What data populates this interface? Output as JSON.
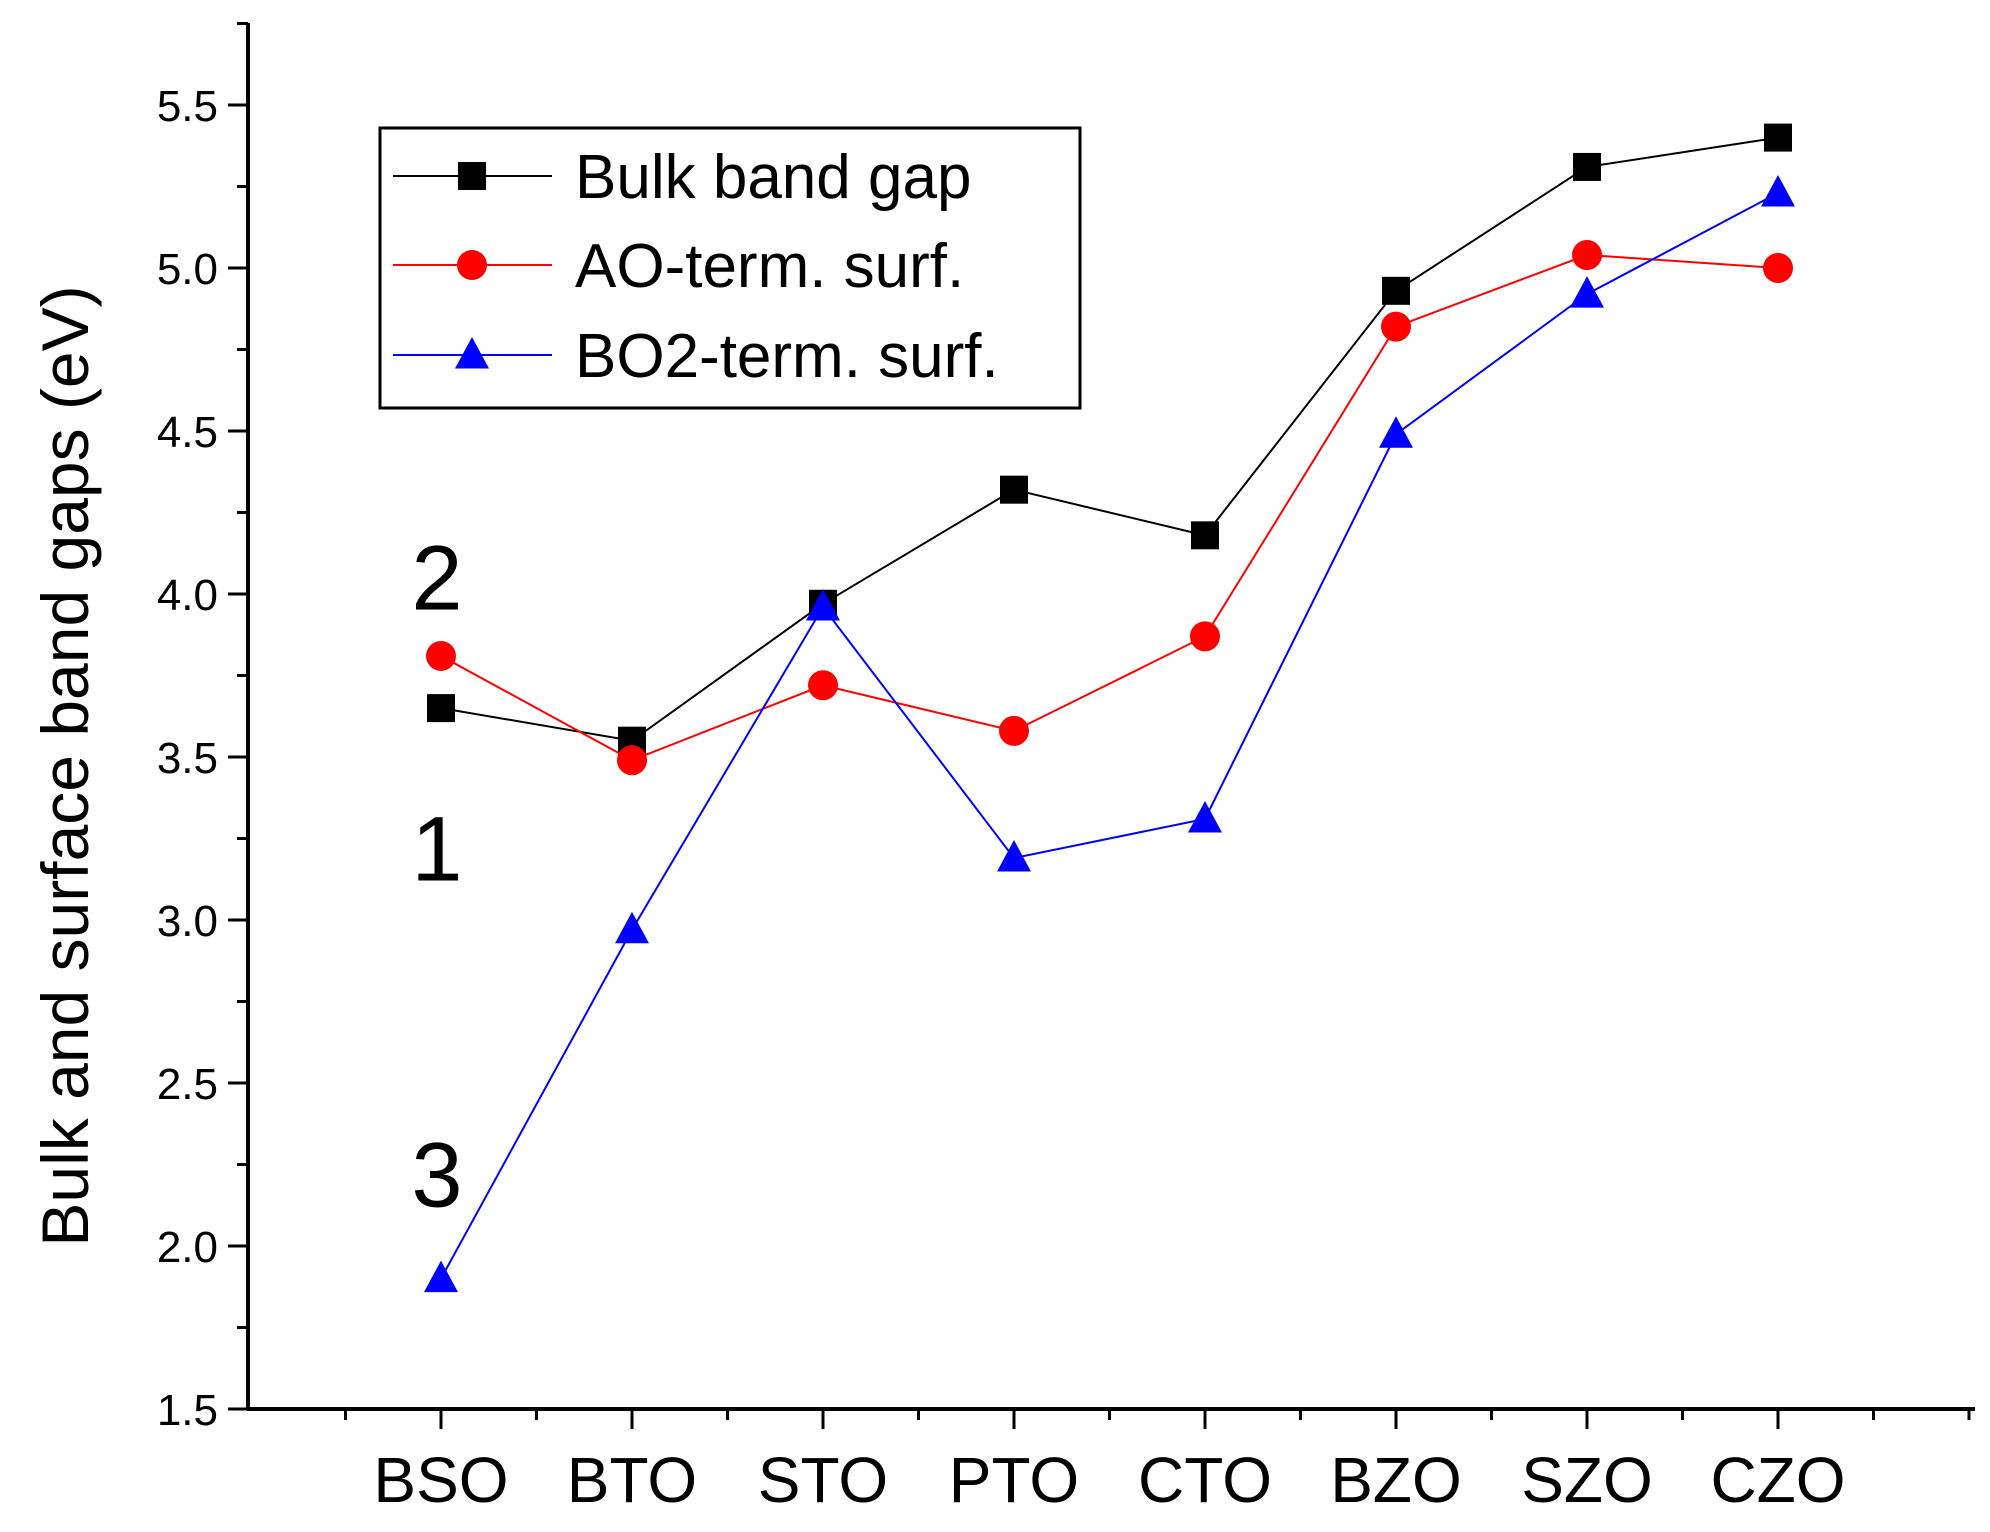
{
  "chart_data": {
    "type": "line",
    "title": "",
    "xlabel": "",
    "ylabel": "Bulk and surface band gaps (eV)",
    "ylim": [
      1.5,
      5.75
    ],
    "yticks": [
      1.5,
      2.0,
      2.5,
      3.0,
      3.5,
      4.0,
      4.5,
      5.0,
      5.5
    ],
    "ytick_labels": [
      "1.5",
      "2.0",
      "2.5",
      "3.0",
      "3.5",
      "4.0",
      "4.5",
      "5.0",
      "5.5"
    ],
    "categories": [
      "BSO",
      "BTO",
      "STO",
      "PTO",
      "CTO",
      "BZO",
      "SZO",
      "CZO"
    ],
    "grid": false,
    "legend_position": "top-left",
    "series": [
      {
        "name": "Bulk band gap",
        "color": "#000000",
        "marker": "square",
        "values": [
          3.65,
          3.55,
          3.97,
          4.32,
          4.18,
          4.93,
          5.31,
          5.4
        ]
      },
      {
        "name": "AO-term. surf.",
        "color": "#ff0000",
        "marker": "circle",
        "values": [
          3.81,
          3.49,
          3.72,
          3.58,
          3.87,
          4.82,
          5.04,
          5.0
        ]
      },
      {
        "name": "BO2-term. surf.",
        "color": "#0000ff",
        "marker": "triangle",
        "values": [
          1.9,
          2.97,
          3.96,
          3.19,
          3.31,
          4.49,
          4.92,
          5.23
        ]
      }
    ],
    "annotations": [
      {
        "text": "2",
        "category": "BSO",
        "y": 4.05
      },
      {
        "text": "1",
        "category": "BSO",
        "y": 3.22
      },
      {
        "text": "3",
        "category": "BSO",
        "y": 2.22
      }
    ]
  }
}
